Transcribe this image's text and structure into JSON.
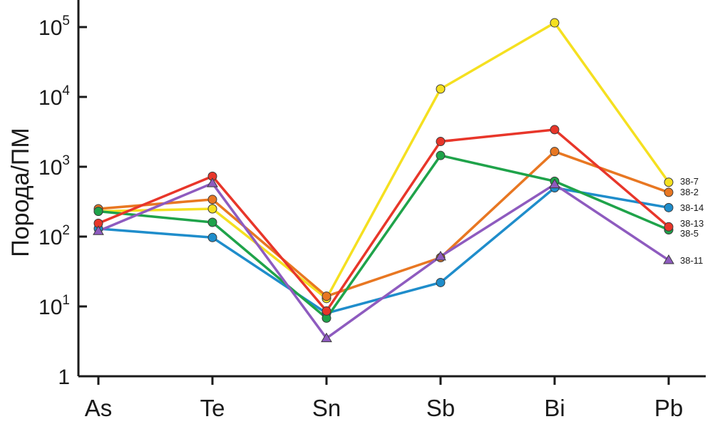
{
  "chart_data": {
    "type": "line",
    "ylabel": "Порода/ПМ",
    "xlabel": "",
    "categories": [
      "As",
      "Te",
      "Sn",
      "Sb",
      "Bi",
      "Pb"
    ],
    "yscale": "log",
    "ylim": [
      1,
      300000
    ],
    "yticks": [
      {
        "value": 1,
        "base": "1",
        "exp": ""
      },
      {
        "value": 10,
        "base": "10",
        "exp": "1"
      },
      {
        "value": 100,
        "base": "10",
        "exp": "2"
      },
      {
        "value": 1000,
        "base": "10",
        "exp": "3"
      },
      {
        "value": 10000,
        "base": "10",
        "exp": "4"
      },
      {
        "value": 100000,
        "base": "10",
        "exp": "5"
      }
    ],
    "series": [
      {
        "name": "38-7",
        "color": "#f5e020",
        "marker": "circle",
        "values": [
          230,
          250,
          13,
          13000,
          115000,
          600
        ]
      },
      {
        "name": "38-2",
        "color": "#e87722",
        "marker": "circle",
        "values": [
          250,
          340,
          14,
          50,
          1650,
          430
        ]
      },
      {
        "name": "38-14",
        "color": "#1f8dcb",
        "marker": "circle",
        "values": [
          130,
          97,
          8,
          22,
          500,
          260
        ]
      },
      {
        "name": "38-5",
        "color": "#1fa34a",
        "marker": "circle",
        "values": [
          230,
          160,
          6.8,
          1450,
          620,
          125
        ]
      },
      {
        "name": "38-13",
        "color": "#e8362a",
        "marker": "circle",
        "values": [
          155,
          730,
          8.6,
          2300,
          3400,
          138
        ]
      },
      {
        "name": "38-11",
        "color": "#8e5bbf",
        "marker": "triangle",
        "values": [
          120,
          580,
          3.5,
          52,
          560,
          46
        ]
      }
    ]
  }
}
